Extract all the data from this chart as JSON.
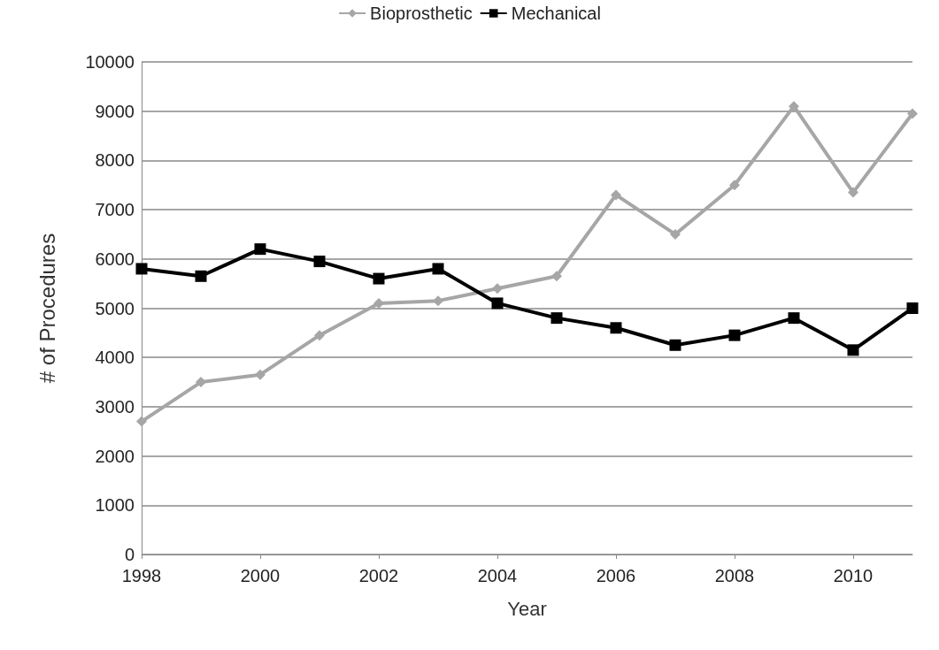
{
  "chart_data": {
    "type": "line",
    "xlabel": "Year",
    "ylabel": "# of Procedures",
    "x": [
      1998,
      1999,
      2000,
      2001,
      2002,
      2003,
      2004,
      2005,
      2006,
      2007,
      2008,
      2009,
      2010,
      2011
    ],
    "series": [
      {
        "name": "Bioprosthetic",
        "color": "#a6a6a6",
        "marker": "diamond",
        "values": [
          2700,
          3500,
          3650,
          4450,
          5100,
          5150,
          5400,
          5650,
          7300,
          6500,
          7500,
          9100,
          7350,
          8950
        ]
      },
      {
        "name": "Mechanical",
        "color": "#000000",
        "marker": "square",
        "values": [
          5800,
          5650,
          6200,
          5950,
          5600,
          5800,
          5100,
          4800,
          4600,
          4250,
          4450,
          4800,
          4150,
          5000
        ]
      }
    ],
    "xlim": [
      1998,
      2011
    ],
    "xticks": [
      1998,
      2000,
      2002,
      2004,
      2006,
      2008,
      2010
    ],
    "ylim": [
      0,
      10000
    ],
    "yticks": [
      0,
      1000,
      2000,
      3000,
      4000,
      5000,
      6000,
      7000,
      8000,
      9000,
      10000
    ],
    "grid": "y",
    "legend": "top",
    "line_style": "solid"
  }
}
